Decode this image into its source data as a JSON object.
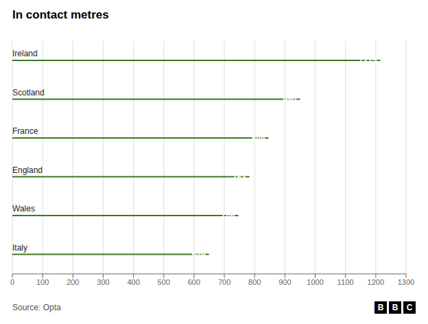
{
  "chart_data": {
    "type": "bar",
    "title": "In contact metres",
    "orientation": "horizontal",
    "categories": [
      "Italy",
      "Wales",
      "England",
      "France",
      "Scotland",
      "Ireland"
    ],
    "values": [
      649,
      746,
      783,
      846,
      950,
      1215
    ],
    "color": "#3a7a1e",
    "xlim": [
      0,
      1300
    ],
    "xticks": [
      0,
      100,
      200,
      300,
      400,
      500,
      600,
      700,
      800,
      900,
      1000,
      1100,
      1200,
      1300
    ],
    "grid": true,
    "data_labels": true,
    "annotations": [
      "Source: Opta",
      "BBC"
    ]
  }
}
